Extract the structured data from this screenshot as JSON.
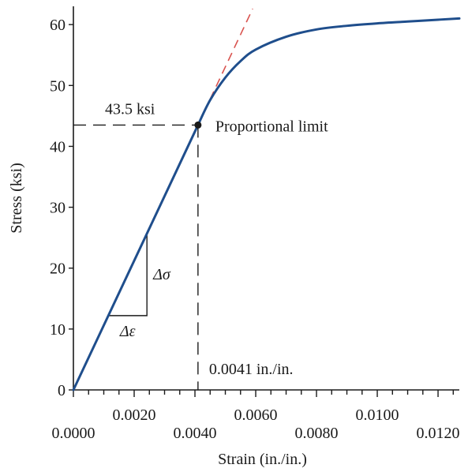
{
  "chart_data": {
    "type": "line",
    "xlabel": "Strain (in./in.)",
    "ylabel": "Stress (ksi)",
    "xlim": [
      0,
      0.0127
    ],
    "ylim": [
      0,
      63
    ],
    "x_ticks_major": [
      0,
      0.004,
      0.008,
      0.012
    ],
    "x_tick_labels_major": [
      "0.0000",
      "0.0040",
      "0.0080",
      "0.0120"
    ],
    "x_ticks_minor": [
      0.002,
      0.006,
      0.01
    ],
    "x_tick_labels_minor": [
      "0.0020",
      "0.0060",
      "0.0100"
    ],
    "x_ticks_small": [
      0.0005,
      0.001,
      0.0015,
      0.0025,
      0.003,
      0.0035,
      0.0045,
      0.005,
      0.0055,
      0.0065,
      0.007,
      0.0075,
      0.0085,
      0.009,
      0.0095,
      0.0105,
      0.011,
      0.0115,
      0.0125
    ],
    "y_ticks": [
      0,
      10,
      20,
      30,
      40,
      50,
      60
    ],
    "y_tick_labels": [
      "0",
      "10",
      "20",
      "30",
      "40",
      "50",
      "60"
    ],
    "series": [
      {
        "color": "#1f4e8c",
        "points": [
          [
            0,
            0
          ],
          [
            0.001,
            10.6
          ],
          [
            0.002,
            21.2
          ],
          [
            0.003,
            31.8
          ],
          [
            0.0041,
            43.5
          ],
          [
            0.0045,
            47.6
          ],
          [
            0.005,
            51.3
          ],
          [
            0.0055,
            54.0
          ],
          [
            0.006,
            55.9
          ],
          [
            0.007,
            58.0
          ],
          [
            0.008,
            59.2
          ],
          [
            0.009,
            59.8
          ],
          [
            0.01,
            60.2
          ],
          [
            0.011,
            60.5
          ],
          [
            0.012,
            60.8
          ],
          [
            0.0127,
            61.0
          ]
        ]
      }
    ],
    "tangent_line": {
      "color": "#d9534f",
      "from": [
        0.0041,
        43.5
      ],
      "to": [
        0.0059,
        62.6
      ]
    },
    "proportional_limit": {
      "x": 0.0041,
      "y": 43.5,
      "label": "Proportional limit",
      "stress_label": "43.5 ksi",
      "strain_label": "0.0041 in./in."
    },
    "slope_triangle": {
      "x1": 0.00115,
      "x2": 0.00242,
      "y1": 12.2,
      "y2": 25.6,
      "dx_label": "Δε",
      "dy_label": "Δσ"
    }
  }
}
